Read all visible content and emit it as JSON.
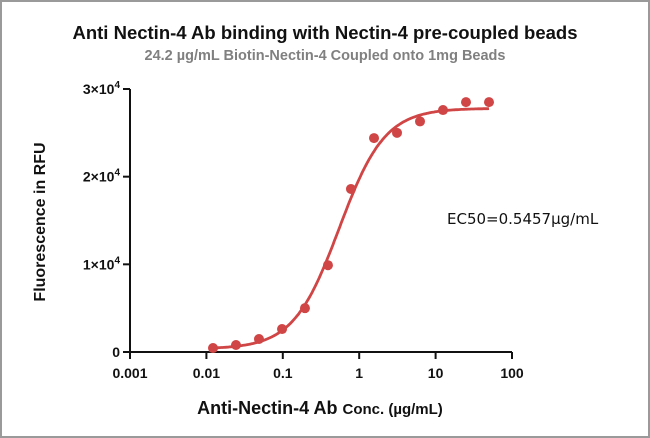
{
  "chart_data": {
    "type": "scatter",
    "title": "Anti Nectin-4 Ab binding with Nectin-4 pre-coupled beads",
    "subtitle": "24.2 µg/mL Biotin-Nectin-4 Coupled onto 1mg Beads",
    "xlabel_main": "Anti-Nectin-4 Ab",
    "xlabel_unit": "Conc. (µg/mL)",
    "ylabel": "Fluorescence in RFU",
    "xscale": "log",
    "xlim": [
      0.001,
      100
    ],
    "ylim": [
      0,
      30000
    ],
    "xticks": [
      {
        "v": 0.001,
        "label": "0.001"
      },
      {
        "v": 0.01,
        "label": "0.01"
      },
      {
        "v": 0.1,
        "label": "0.1"
      },
      {
        "v": 1,
        "label": "1"
      },
      {
        "v": 10,
        "label": "10"
      },
      {
        "v": 100,
        "label": "100"
      }
    ],
    "yticks": [
      {
        "v": 0,
        "base": "0",
        "exp": ""
      },
      {
        "v": 10000,
        "base": "1×10",
        "exp": "4"
      },
      {
        "v": 20000,
        "base": "2×10",
        "exp": "4"
      },
      {
        "v": 30000,
        "base": "3×10",
        "exp": "4"
      }
    ],
    "grid": false,
    "color": "#d04545",
    "points": {
      "x": [
        0.0122,
        0.0244,
        0.0488,
        0.0977,
        0.195,
        0.39,
        0.78,
        1.5625,
        3.125,
        6.25,
        12.5,
        25,
        50
      ],
      "y": [
        450,
        800,
        1480,
        2620,
        5000,
        9900,
        18600,
        24400,
        25000,
        26300,
        27600,
        28500,
        28500
      ]
    },
    "fit": {
      "model": "4PL",
      "bottom": 350,
      "top": 27800,
      "ec50": 0.5457,
      "hill": 1.45
    },
    "annotation": "EC50=0.5457µg/mL"
  }
}
